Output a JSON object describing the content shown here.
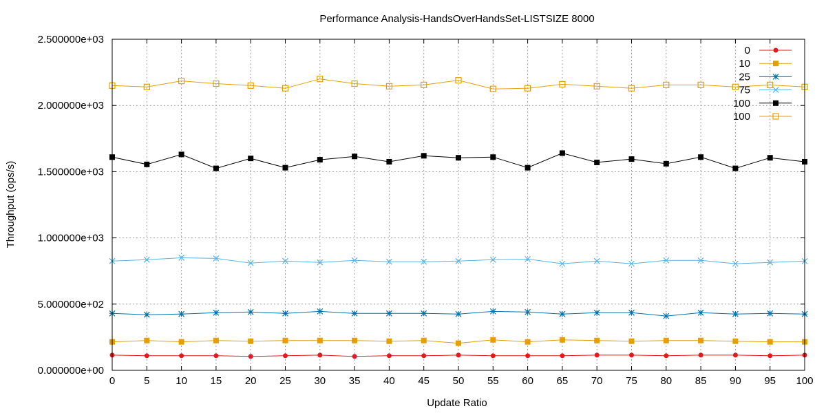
{
  "chart_data": {
    "type": "line",
    "title": "Performance Analysis-HandsOverHandsSet-LISTSIZE 8000",
    "xlabel": "Update Ratio",
    "ylabel": "Throughput (ops/s)",
    "xlim": [
      0,
      100
    ],
    "ylim": [
      0,
      2500
    ],
    "grid": true,
    "legend_position": "top-right",
    "x": [
      0,
      5,
      10,
      15,
      20,
      25,
      30,
      35,
      40,
      45,
      50,
      55,
      60,
      65,
      70,
      75,
      80,
      85,
      90,
      95,
      100
    ],
    "x_ticks": [
      "0",
      "5",
      "10",
      "15",
      "20",
      "25",
      "30",
      "35",
      "40",
      "45",
      "50",
      "55",
      "60",
      "65",
      "70",
      "75",
      "80",
      "85",
      "90",
      "95",
      "100"
    ],
    "y_ticks": [
      {
        "value": 0,
        "label": "0.000000e+00"
      },
      {
        "value": 500,
        "label": "5.000000e+02"
      },
      {
        "value": 1000,
        "label": "1.000000e+03"
      },
      {
        "value": 1500,
        "label": "1.500000e+03"
      },
      {
        "value": 2000,
        "label": "2.000000e+03"
      },
      {
        "value": 2500,
        "label": "2.500000e+03"
      }
    ],
    "series": [
      {
        "name": "0",
        "color": "#e41a1c",
        "marker": "filled-circle",
        "values": [
          115,
          110,
          110,
          110,
          105,
          110,
          115,
          105,
          110,
          110,
          115,
          110,
          110,
          110,
          115,
          115,
          110,
          115,
          115,
          110,
          115
        ]
      },
      {
        "name": "10",
        "color": "#e69f00",
        "marker": "filled-square",
        "values": [
          215,
          225,
          215,
          225,
          220,
          225,
          225,
          225,
          220,
          225,
          205,
          230,
          215,
          230,
          225,
          220,
          225,
          225,
          220,
          215,
          215
        ]
      },
      {
        "name": "25",
        "color": "#0072b2",
        "marker": "star",
        "values": [
          430,
          420,
          425,
          435,
          440,
          430,
          445,
          430,
          430,
          430,
          425,
          445,
          440,
          425,
          435,
          435,
          410,
          435,
          425,
          430,
          425
        ]
      },
      {
        "name": "75",
        "color": "#56b4e9",
        "marker": "cross",
        "values": [
          825,
          835,
          850,
          845,
          810,
          825,
          815,
          830,
          820,
          820,
          825,
          835,
          840,
          805,
          825,
          805,
          830,
          830,
          805,
          815,
          825
        ]
      },
      {
        "name": "100",
        "color": "#000000",
        "marker": "filled-square",
        "values": [
          1610,
          1555,
          1630,
          1525,
          1600,
          1530,
          1590,
          1615,
          1575,
          1620,
          1605,
          1610,
          1530,
          1640,
          1570,
          1595,
          1560,
          1610,
          1525,
          1605,
          1575
        ]
      },
      {
        "name": "100",
        "color": "#e69f00",
        "marker": "open-square",
        "values": [
          2150,
          2140,
          2185,
          2165,
          2150,
          2130,
          2200,
          2165,
          2145,
          2155,
          2190,
          2125,
          2130,
          2160,
          2145,
          2130,
          2155,
          2155,
          2140,
          2155,
          2140
        ]
      }
    ]
  }
}
